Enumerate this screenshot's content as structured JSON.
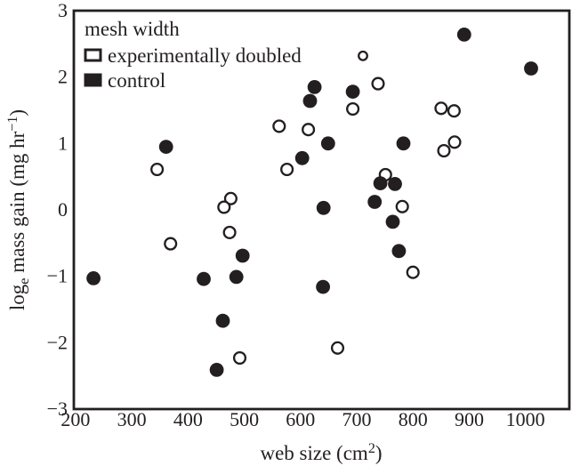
{
  "figure": {
    "background": "#ffffff",
    "ink": "#231f20"
  },
  "chart_data": {
    "type": "scatter",
    "title": "",
    "xlabel": "web size (cm²)",
    "ylabel": "logₑ mass gain (mg hr⁻¹)",
    "xlabel_parts": [
      {
        "t": "web size (cm"
      },
      {
        "t": "2",
        "style": "sup"
      },
      {
        "t": ")"
      }
    ],
    "ylabel_parts": [
      {
        "t": "log"
      },
      {
        "t": "e",
        "style": "sub"
      },
      {
        "t": " mass gain (mg hr"
      },
      {
        "t": "−1",
        "style": "sup"
      },
      {
        "t": ")"
      }
    ],
    "xlim": [
      197,
      1078
    ],
    "ylim": [
      -3,
      3
    ],
    "grid": false,
    "x_ticks": [
      {
        "v": 200,
        "label": "200"
      },
      {
        "v": 300,
        "label": "300"
      },
      {
        "v": 400,
        "label": "400"
      },
      {
        "v": 500,
        "label": "500"
      },
      {
        "v": 600,
        "label": "600"
      },
      {
        "v": 700,
        "label": "700"
      },
      {
        "v": 800,
        "label": "800"
      },
      {
        "v": 900,
        "label": "900"
      },
      {
        "v": 1000,
        "label": "1000"
      }
    ],
    "y_ticks": [
      {
        "v": 3,
        "label": "3"
      },
      {
        "v": 2,
        "label": "2"
      },
      {
        "v": 1,
        "label": "1"
      },
      {
        "v": 0,
        "label": "0"
      },
      {
        "v": -1,
        "label": "−1"
      },
      {
        "v": -2,
        "label": "−2"
      },
      {
        "v": -3,
        "label": "−3"
      }
    ],
    "legend": {
      "title": "mesh width",
      "position": "top-left",
      "items": [
        {
          "label": "experimentally doubled",
          "swatch": "open"
        },
        {
          "label": "control",
          "swatch": "filled"
        }
      ]
    },
    "series": [
      {
        "name": "experimentally doubled",
        "marker": "open-circle",
        "points": [
          [
            711,
            2.32,
            4.8
          ],
          [
            738,
            1.9
          ],
          [
            562,
            1.26
          ],
          [
            614,
            1.21
          ],
          [
            693,
            1.52
          ],
          [
            850,
            1.53
          ],
          [
            873,
            1.49
          ],
          [
            576,
            0.61
          ],
          [
            855,
            0.89
          ],
          [
            874,
            1.02
          ],
          [
            751,
            0.53
          ],
          [
            781,
            0.05
          ],
          [
            476,
            0.17
          ],
          [
            464,
            0.04
          ],
          [
            474,
            -0.34
          ],
          [
            369,
            -0.51
          ],
          [
            492,
            -2.23
          ],
          [
            800,
            -0.94
          ],
          [
            666,
            -2.08
          ],
          [
            345,
            0.61
          ]
        ]
      },
      {
        "name": "control",
        "marker": "filled-circle",
        "points": [
          [
            891,
            2.64
          ],
          [
            1010,
            2.13
          ],
          [
            625,
            1.85
          ],
          [
            693,
            1.78
          ],
          [
            617,
            1.64
          ],
          [
            361,
            0.95
          ],
          [
            649,
            1.0
          ],
          [
            603,
            0.78
          ],
          [
            783,
            1.0
          ],
          [
            742,
            0.4
          ],
          [
            768,
            0.39
          ],
          [
            732,
            0.12
          ],
          [
            641,
            0.03
          ],
          [
            764,
            -0.18
          ],
          [
            775,
            -0.62
          ],
          [
            640,
            -1.16
          ],
          [
            497,
            -0.69
          ],
          [
            232,
            -1.03
          ],
          [
            428,
            -1.04
          ],
          [
            486,
            -1.01
          ],
          [
            462,
            -1.67
          ],
          [
            451,
            -2.41
          ]
        ]
      }
    ]
  }
}
